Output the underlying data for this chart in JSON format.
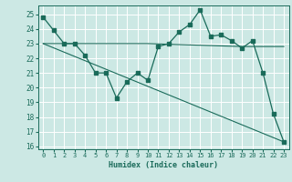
{
  "xlabel": "Humidex (Indice chaleur)",
  "bg_color": "#cce8e4",
  "grid_color": "#ffffff",
  "line_color": "#1a6b5a",
  "x_ticks": [
    0,
    1,
    2,
    3,
    4,
    5,
    6,
    7,
    8,
    9,
    10,
    11,
    12,
    13,
    14,
    15,
    16,
    17,
    18,
    19,
    20,
    21,
    22,
    23
  ],
  "ylim": [
    15.8,
    25.6
  ],
  "xlim": [
    -0.5,
    23.5
  ],
  "series1_x": [
    0,
    1,
    2,
    3,
    4,
    5,
    6,
    7,
    8,
    9,
    10,
    11,
    12,
    13,
    14,
    15,
    16,
    17,
    18,
    19,
    20,
    21,
    22,
    23
  ],
  "series1_y": [
    24.8,
    23.9,
    23.0,
    23.0,
    22.2,
    21.0,
    21.0,
    19.3,
    20.4,
    21.0,
    20.5,
    22.8,
    23.0,
    23.8,
    24.3,
    25.3,
    23.5,
    23.6,
    23.2,
    22.7,
    23.2,
    21.0,
    18.2,
    16.3
  ],
  "series2_x": [
    0,
    10,
    19,
    23
  ],
  "series2_y": [
    23.0,
    23.0,
    22.8,
    22.8
  ],
  "series3_x": [
    0,
    23
  ],
  "series3_y": [
    23.0,
    16.3
  ],
  "yticks": [
    16,
    17,
    18,
    19,
    20,
    21,
    22,
    23,
    24,
    25
  ]
}
